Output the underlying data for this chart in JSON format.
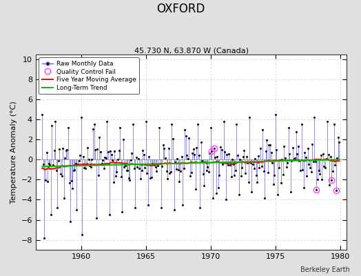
{
  "title": "OXFORD",
  "subtitle": "45.730 N, 63.870 W (Canada)",
  "ylabel": "Temperature Anomaly (°C)",
  "xlabel_credit": "Berkeley Earth",
  "xlim": [
    1956.5,
    1980.5
  ],
  "ylim": [
    -9,
    10.5
  ],
  "yticks": [
    -8,
    -6,
    -4,
    -2,
    0,
    2,
    4,
    6,
    8,
    10
  ],
  "xticks": [
    1960,
    1965,
    1970,
    1975,
    1980
  ],
  "bg_color": "#e0e0e0",
  "plot_bg_color": "#ffffff",
  "raw_line_color": "#6666cc",
  "raw_marker_color": "#111111",
  "ma_color": "#ff0000",
  "trend_color": "#00bb00",
  "qc_color": "#ff44ff",
  "grid_color": "#cccccc",
  "start_year": 1957,
  "end_year": 1979,
  "seed": 12
}
